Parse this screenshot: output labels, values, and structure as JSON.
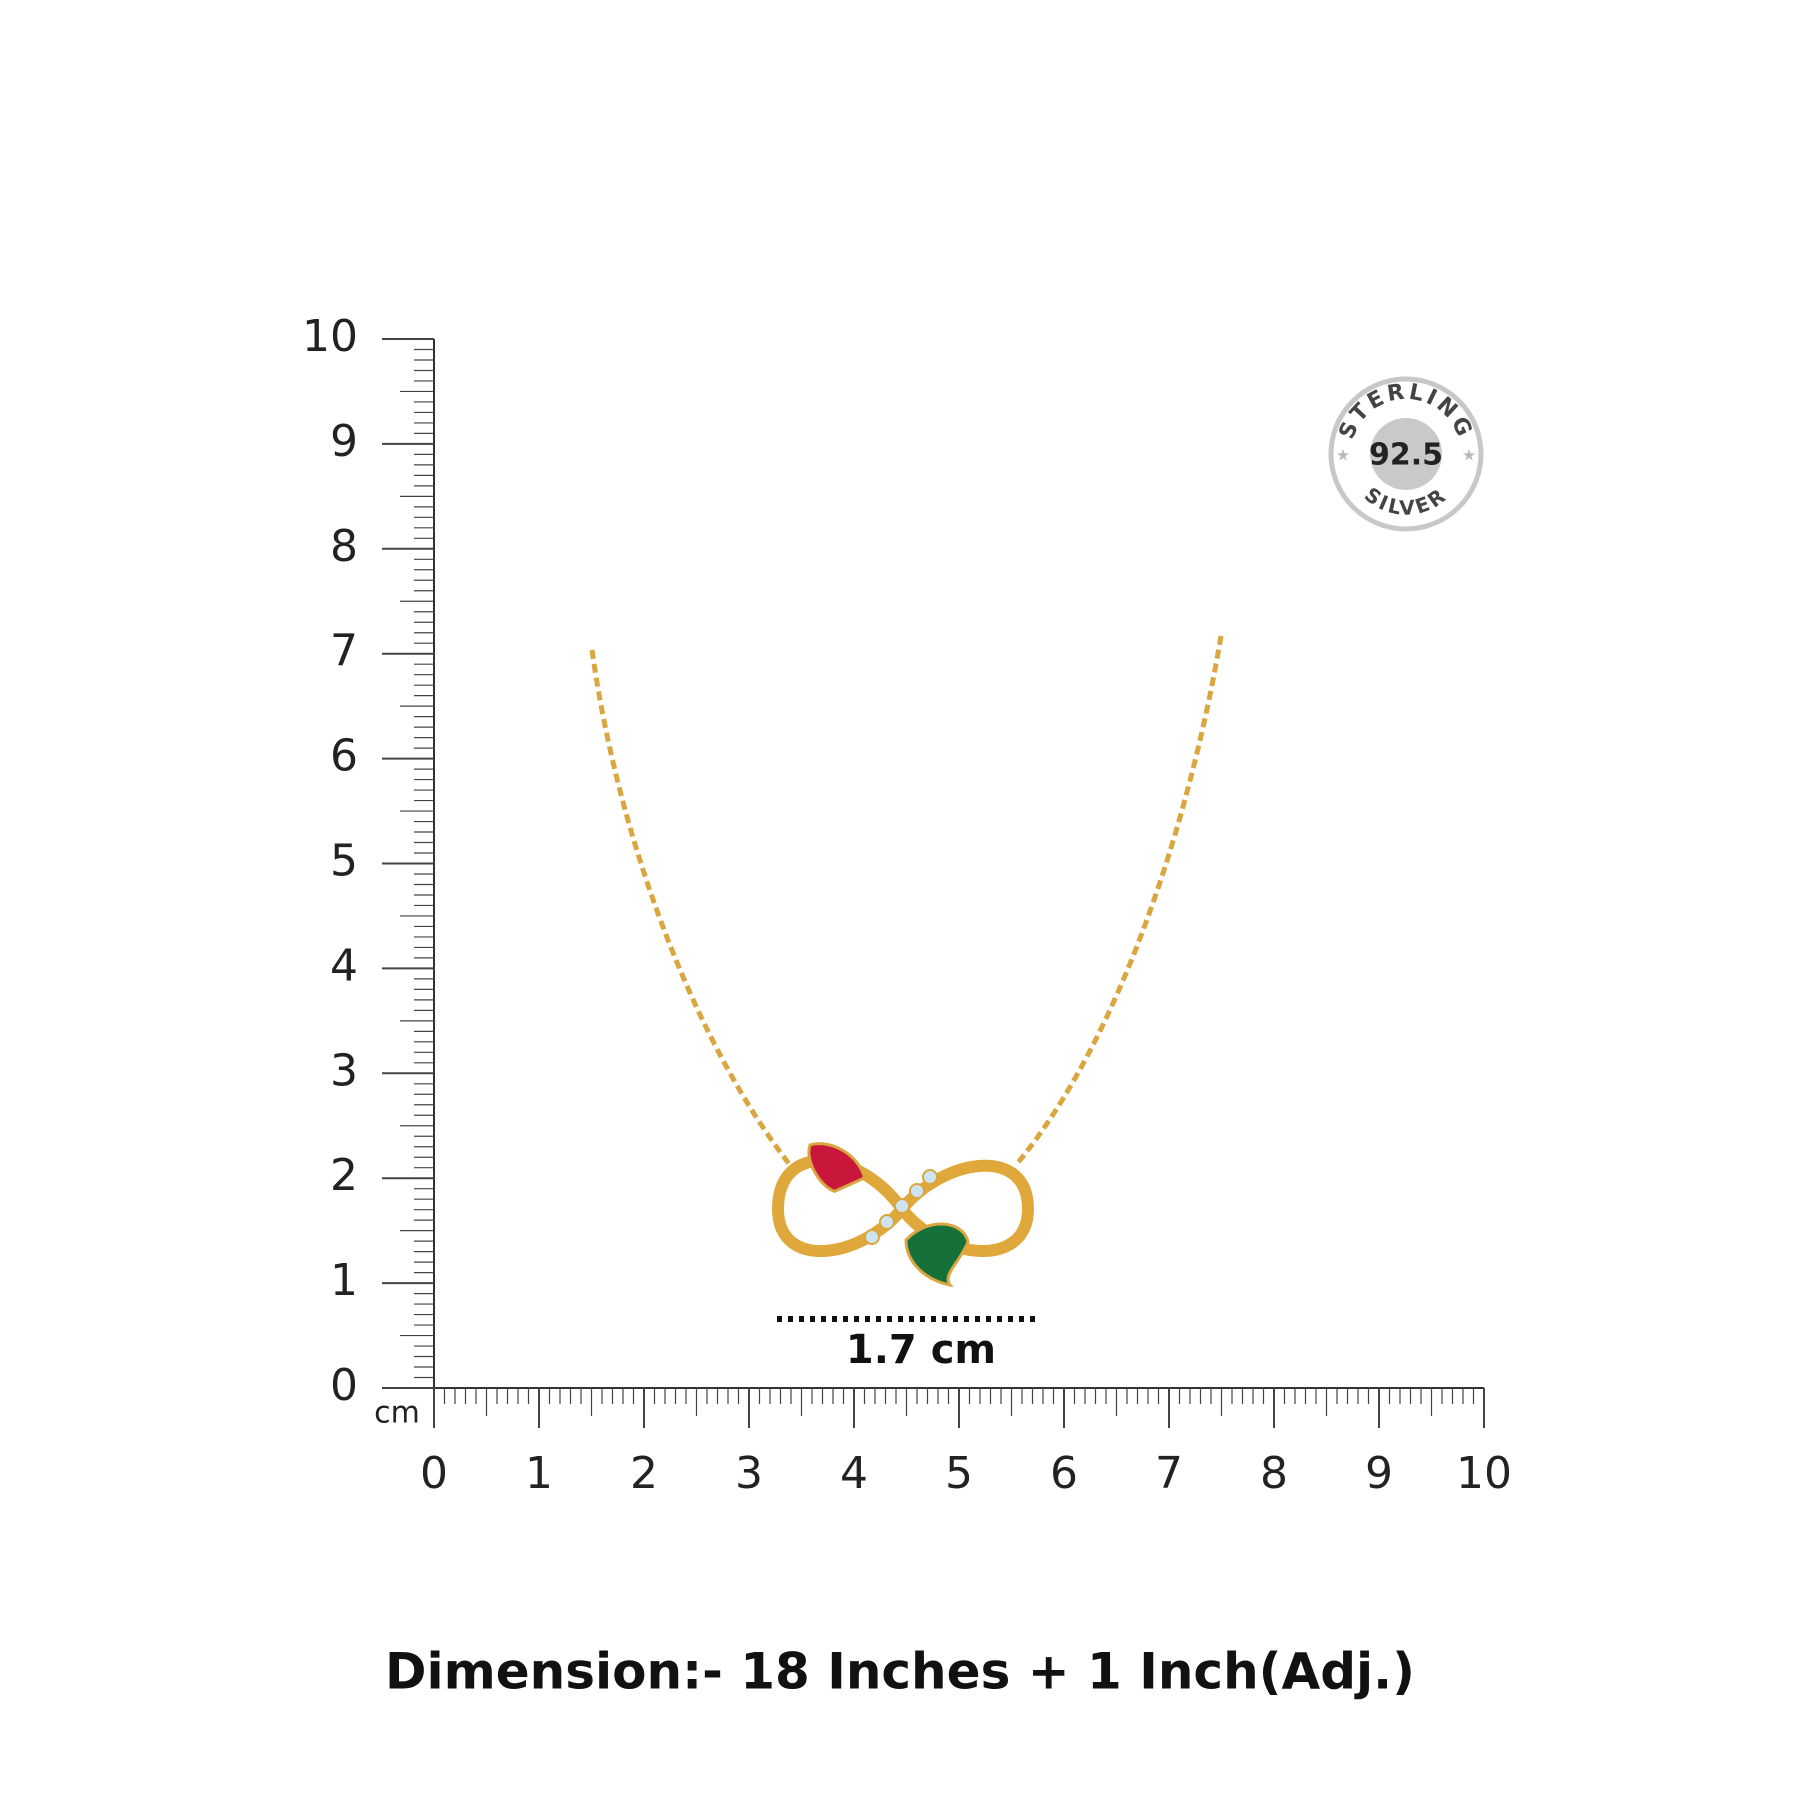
{
  "ruler": {
    "unit": "cm",
    "y_labels": [
      0,
      1,
      2,
      3,
      4,
      5,
      6,
      7,
      8,
      9,
      10
    ],
    "x_labels": [
      0,
      1,
      2,
      3,
      4,
      5,
      6,
      7,
      8,
      9,
      10
    ]
  },
  "badge": {
    "top": "STERLING",
    "value": "92.5",
    "bottom": "SILVER"
  },
  "measurement": "1.7 cm",
  "dimension": "Dimension:- 18 Inches + 1 Inch(Adj.)"
}
